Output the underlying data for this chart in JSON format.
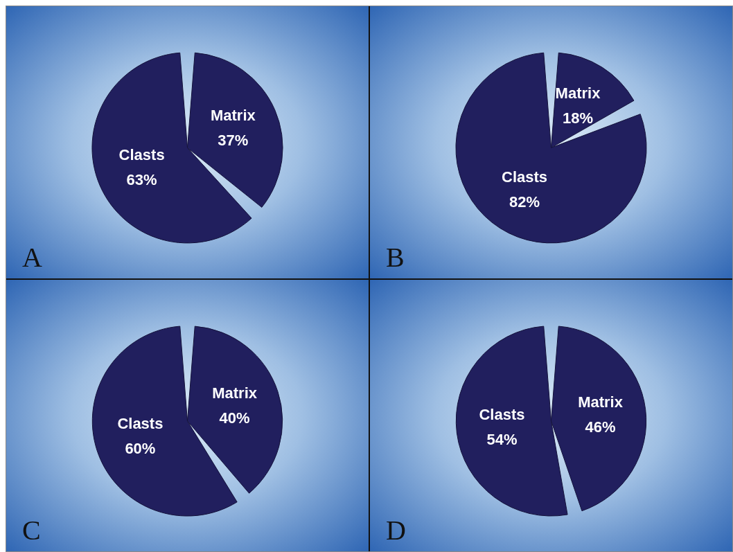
{
  "chart_data": [
    {
      "type": "pie",
      "title": "A",
      "categories": [
        "Matrix",
        "Clasts"
      ],
      "values": [
        37,
        63
      ],
      "colors": [
        "#211f5e",
        "#211f5e"
      ],
      "value_labels": [
        "37%",
        "63%"
      ]
    },
    {
      "type": "pie",
      "title": "B",
      "categories": [
        "Matrix",
        "Clasts"
      ],
      "values": [
        18,
        82
      ],
      "colors": [
        "#211f5e",
        "#211f5e"
      ],
      "value_labels": [
        "18%",
        "82%"
      ]
    },
    {
      "type": "pie",
      "title": "C",
      "categories": [
        "Matrix",
        "Clasts"
      ],
      "values": [
        40,
        60
      ],
      "colors": [
        "#211f5e",
        "#211f5e"
      ],
      "value_labels": [
        "40%",
        "60%"
      ]
    },
    {
      "type": "pie",
      "title": "D",
      "categories": [
        "Matrix",
        "Clasts"
      ],
      "values": [
        46,
        54
      ],
      "colors": [
        "#211f5e",
        "#211f5e"
      ],
      "value_labels": [
        "46%",
        "54%"
      ]
    }
  ]
}
